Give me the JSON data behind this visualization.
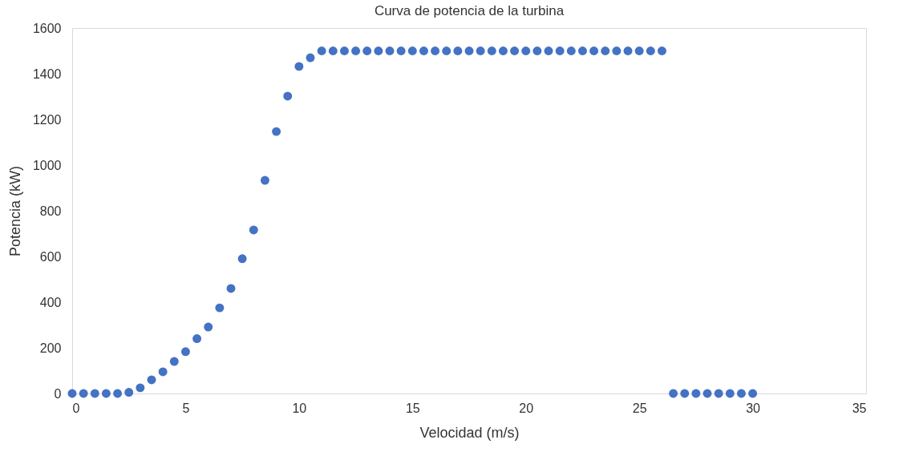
{
  "chart_data": {
    "type": "scatter",
    "title": "Curva de potencia de la turbina",
    "xlabel": "Velocidad (m/s)",
    "ylabel": "Potencia (kW)",
    "x": [
      0,
      0.5,
      1,
      1.5,
      2,
      2.5,
      3,
      3.5,
      4,
      4.5,
      5,
      5.5,
      6,
      6.5,
      7,
      7.5,
      8,
      8.5,
      9,
      9.5,
      10,
      10.5,
      11,
      11.5,
      12,
      12.5,
      13,
      13.5,
      14,
      14.5,
      15,
      15.5,
      16,
      16.5,
      17,
      17.5,
      18,
      18.5,
      19,
      19.5,
      20,
      20.5,
      21,
      21.5,
      22,
      22.5,
      23,
      23.5,
      24,
      24.5,
      25,
      25.5,
      26,
      26.5,
      27,
      27.5,
      28,
      28.5,
      29,
      29.5,
      30
    ],
    "values": [
      0,
      0,
      0,
      0,
      0,
      5,
      25,
      60,
      95,
      140,
      183,
      240,
      291,
      375,
      460,
      590,
      716,
      933,
      1147,
      1302,
      1432,
      1470,
      1500,
      1500,
      1500,
      1500,
      1500,
      1500,
      1500,
      1500,
      1500,
      1500,
      1500,
      1500,
      1500,
      1500,
      1500,
      1500,
      1500,
      1500,
      1500,
      1500,
      1500,
      1500,
      1500,
      1500,
      1500,
      1500,
      1500,
      1500,
      1500,
      1500,
      1500,
      0,
      0,
      0,
      0,
      0,
      0,
      0,
      0
    ],
    "color": "#4472c4",
    "marker": "circle",
    "xlim": [
      0,
      35
    ],
    "xticks": [
      0,
      5,
      10,
      15,
      20,
      25,
      30,
      35
    ],
    "ylim": [
      0,
      1600
    ],
    "yticks": [
      0,
      200,
      400,
      600,
      800,
      1000,
      1200,
      1400,
      1600
    ],
    "grid": false
  }
}
